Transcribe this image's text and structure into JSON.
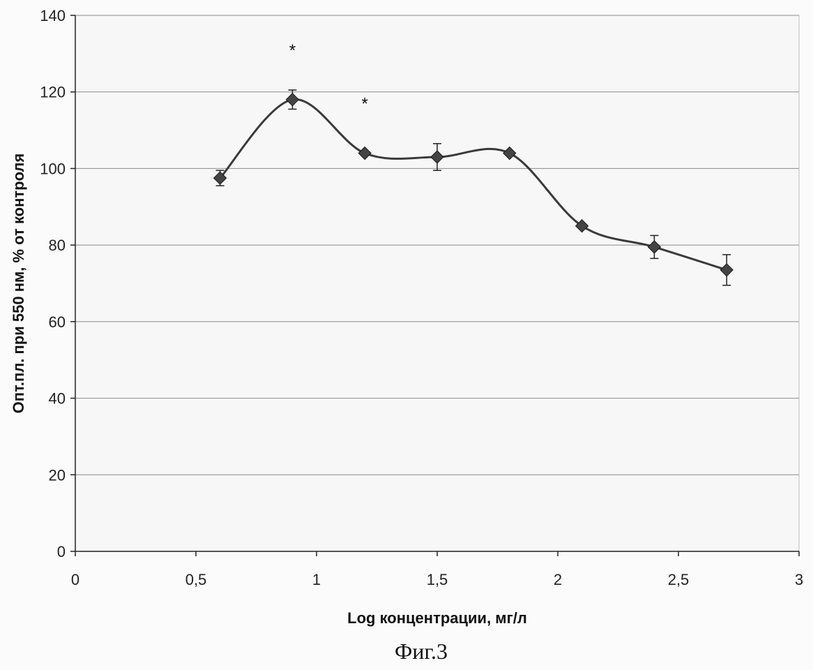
{
  "chart_data": {
    "type": "scatter",
    "title": "",
    "xlabel": "Log концентрации, мг/л",
    "ylabel": "Опт.пл. при 550 нм, % от контроля",
    "xlim": [
      0,
      3
    ],
    "ylim": [
      0,
      140
    ],
    "x_ticks": [
      0,
      0.5,
      1,
      1.5,
      2,
      2.5,
      3
    ],
    "x_tick_labels": [
      "0",
      "0,5",
      "1",
      "1,5",
      "2",
      "2,5",
      "3"
    ],
    "y_ticks": [
      0,
      20,
      40,
      60,
      80,
      100,
      120,
      140
    ],
    "y_tick_labels": [
      "0",
      "20",
      "40",
      "60",
      "80",
      "100",
      "120",
      "140"
    ],
    "grid": "horizontal",
    "smooth_line": true,
    "series": [
      {
        "points": [
          {
            "x": 0.6,
            "y": 97.5,
            "err": 2.0
          },
          {
            "x": 0.9,
            "y": 118.0,
            "err": 2.5
          },
          {
            "x": 1.2,
            "y": 104.0,
            "err": 0.5
          },
          {
            "x": 1.5,
            "y": 103.0,
            "err": 3.5
          },
          {
            "x": 1.8,
            "y": 104.0,
            "err": 0.5
          },
          {
            "x": 2.1,
            "y": 85.0,
            "err": 0.5
          },
          {
            "x": 2.4,
            "y": 79.5,
            "err": 3.0
          },
          {
            "x": 2.7,
            "y": 73.5,
            "err": 4.0
          }
        ]
      }
    ],
    "annotations": [
      {
        "text": "*",
        "x": 0.9,
        "y": 132
      },
      {
        "text": "*",
        "x": 1.2,
        "y": 118
      }
    ],
    "colors": {
      "line": "#3a3a3a",
      "marker": "#444444",
      "grid": "#8a8a8a",
      "axis": "#222222"
    }
  },
  "figure_caption": "Фиг.3"
}
